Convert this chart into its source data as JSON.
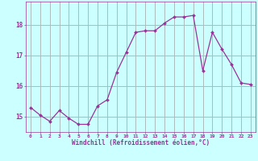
{
  "x": [
    0,
    1,
    2,
    3,
    4,
    5,
    6,
    7,
    8,
    9,
    10,
    11,
    12,
    13,
    14,
    15,
    16,
    17,
    18,
    19,
    20,
    21,
    22,
    23
  ],
  "y": [
    15.3,
    15.05,
    14.85,
    15.2,
    14.95,
    14.75,
    14.75,
    15.35,
    15.55,
    16.45,
    17.1,
    17.75,
    17.8,
    17.8,
    18.05,
    18.25,
    18.25,
    18.3,
    16.5,
    17.75,
    17.2,
    16.7,
    16.1,
    16.05
  ],
  "line_color": "#993399",
  "marker_color": "#993399",
  "bg_color": "#ccffff",
  "grid_color": "#aabbbb",
  "xlabel": "Windchill (Refroidissement éolien,°C)",
  "xlabel_color": "#993399",
  "tick_color": "#993399",
  "ylim": [
    14.5,
    18.75
  ],
  "xlim": [
    -0.5,
    23.5
  ],
  "yticks": [
    15,
    16,
    17,
    18
  ],
  "xticks": [
    0,
    1,
    2,
    3,
    4,
    5,
    6,
    7,
    8,
    9,
    10,
    11,
    12,
    13,
    14,
    15,
    16,
    17,
    18,
    19,
    20,
    21,
    22,
    23
  ]
}
